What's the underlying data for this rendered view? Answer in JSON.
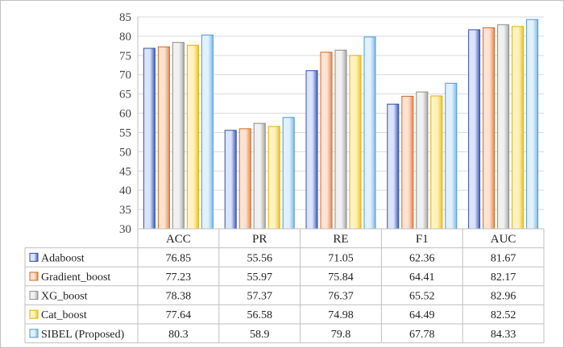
{
  "chart_data": {
    "type": "bar",
    "title": "",
    "xlabel": "",
    "ylabel": "",
    "ylim": [
      30,
      85
    ],
    "yticks": [
      30,
      35,
      40,
      45,
      50,
      55,
      60,
      65,
      70,
      75,
      80,
      85
    ],
    "grid": true,
    "legend": "data-table-left",
    "categories": [
      "ACC",
      "PR",
      "RE",
      "F1",
      "AUC"
    ],
    "series": [
      {
        "name": "Adaboost",
        "values": [
          76.85,
          55.56,
          71.05,
          62.36,
          81.67
        ],
        "value_labels": [
          "76.85",
          "55.56",
          "71.05",
          "62.36",
          "81.67"
        ],
        "color_light": "#dbe4fb",
        "color_dark": "#3b5fc8",
        "stroke": "#2f4fa8"
      },
      {
        "name": "Gradient_boost",
        "values": [
          77.23,
          55.97,
          75.84,
          64.41,
          82.17
        ],
        "value_labels": [
          "77.23",
          "55.97",
          "75.84",
          "64.41",
          "82.17"
        ],
        "color_light": "#fde3d3",
        "color_dark": "#ec8a4e",
        "stroke": "#d2691e"
      },
      {
        "name": "XG_boost",
        "values": [
          78.38,
          57.37,
          76.37,
          65.52,
          82.96
        ],
        "value_labels": [
          "78.38",
          "57.37",
          "76.37",
          "65.52",
          "82.96"
        ],
        "color_light": "#f1f1f1",
        "color_dark": "#a9a9a9",
        "stroke": "#8c8c8c"
      },
      {
        "name": "Cat_boost",
        "values": [
          77.64,
          56.58,
          74.98,
          64.49,
          82.52
        ],
        "value_labels": [
          "77.64",
          "56.58",
          "74.98",
          "64.49",
          "82.52"
        ],
        "color_light": "#fff3c4",
        "color_dark": "#f5c518",
        "stroke": "#e0b000"
      },
      {
        "name": "SIBEL (Proposed)",
        "values": [
          80.3,
          58.9,
          79.8,
          67.78,
          84.33
        ],
        "value_labels": [
          "80.3",
          "58.9",
          "79.8",
          "67.78",
          "84.33"
        ],
        "color_light": "#e3f1fc",
        "color_dark": "#7cbdee",
        "stroke": "#4a9ad8"
      }
    ]
  }
}
